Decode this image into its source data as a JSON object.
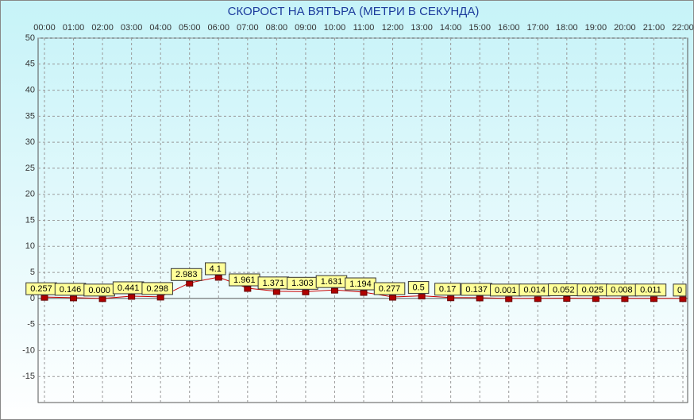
{
  "chart_data": {
    "type": "line",
    "title": "СКОРОСТ НА ВЯТЪРА (МЕТРИ В СЕКУНДА)",
    "categories": [
      "00:00",
      "01:00",
      "02:00",
      "03:00",
      "04:00",
      "05:00",
      "06:00",
      "07:00",
      "08:00",
      "09:00",
      "10:00",
      "11:00",
      "12:00",
      "13:00",
      "14:00",
      "15:00",
      "16:00",
      "17:00",
      "18:00",
      "19:00",
      "20:00",
      "21:00",
      "22:00"
    ],
    "series": [
      {
        "color": "#cc0000",
        "values": [
          0.257,
          0.146,
          0.0,
          0.441,
          0.298,
          2.983,
          4.1,
          1.961,
          1.371,
          1.303,
          1.631,
          1.194,
          0.277,
          0.5,
          0.17,
          0.137,
          0.001,
          0.014,
          0.052,
          0.025,
          0.008,
          0.011,
          0
        ],
        "value_labels": [
          "0.257",
          "0.146",
          "0.000",
          "0.441",
          "0.298",
          "2.983",
          "4.1",
          "1.961",
          "1.371",
          "1.303",
          "1.631",
          "1.194",
          "0.277",
          "0.5",
          "0.17",
          "0.137",
          "0.001",
          "0.014",
          "0.052",
          "0.025",
          "0.008",
          "0.011",
          "0"
        ]
      }
    ],
    "ylim": [
      -20,
      50
    ],
    "yticks": [
      -15,
      -10,
      -5,
      0,
      5,
      10,
      15,
      20,
      25,
      30,
      35,
      40,
      45,
      50
    ],
    "grid": true
  }
}
